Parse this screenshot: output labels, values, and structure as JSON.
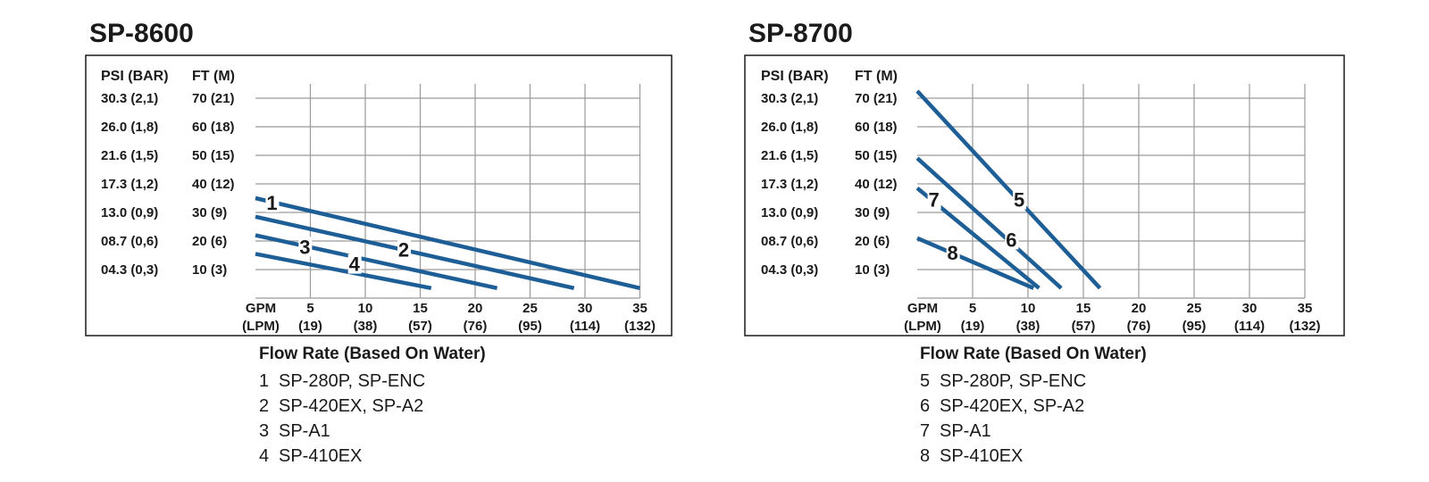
{
  "colors": {
    "series": "#1d5e96",
    "grid": "#9a9a9a",
    "frame": "#1a1a1a",
    "text": "#1a1a1a"
  },
  "chart_data": [
    {
      "type": "line",
      "title": "SP-8600",
      "caption": "Flow Rate (Based On Water)",
      "y_header_psi": "PSI (BAR)",
      "y_header_ft": "FT (M)",
      "y_ticks_psi": [
        "30.3 (2,1)",
        "26.0 (1,8)",
        "21.6 (1,5)",
        "17.3 (1,2)",
        "13.0 (0,9)",
        "08.7 (0,6)",
        "04.3 (0,3)"
      ],
      "y_ticks_ft": [
        "70 (21)",
        "60 (18)",
        "50 (15)",
        "40 (12)",
        "30 (9)",
        "20 (6)",
        "10 (3)"
      ],
      "y_tick_values": [
        70,
        60,
        50,
        40,
        30,
        20,
        10
      ],
      "x_unit_gpm": "GPM",
      "x_unit_lpm": "(LPM)",
      "x_tick_values": [
        5,
        10,
        15,
        20,
        25,
        30,
        35
      ],
      "x_ticks_gpm": [
        "5",
        "10",
        "15",
        "20",
        "25",
        "30",
        "35"
      ],
      "x_ticks_lpm": [
        "(19)",
        "(38)",
        "(57)",
        "(76)",
        "(95)",
        "(114)",
        "(132)"
      ],
      "xlim": [
        0,
        35
      ],
      "ylim": [
        0,
        75
      ],
      "grid": true,
      "series": [
        {
          "label": "1",
          "legend": "SP-280P, SP-ENC",
          "x": [
            0,
            35
          ],
          "y": [
            35,
            3.5
          ],
          "label_at": [
            1.5,
            33.5
          ]
        },
        {
          "label": "2",
          "legend": "SP-420EX, SP-A2",
          "x": [
            0,
            29
          ],
          "y": [
            28.5,
            3.5
          ],
          "label_at": [
            13.5,
            17
          ]
        },
        {
          "label": "3",
          "legend": "SP-A1",
          "x": [
            0,
            22
          ],
          "y": [
            22,
            3.5
          ],
          "label_at": [
            4.5,
            18
          ]
        },
        {
          "label": "4",
          "legend": "SP-410EX",
          "x": [
            0,
            16
          ],
          "y": [
            15.5,
            3.5
          ],
          "label_at": [
            9,
            12
          ]
        }
      ]
    },
    {
      "type": "line",
      "title": "SP-8700",
      "caption": "Flow Rate (Based On Water)",
      "y_header_psi": "PSI (BAR)",
      "y_header_ft": "FT (M)",
      "y_ticks_psi": [
        "30.3 (2,1)",
        "26.0 (1,8)",
        "21.6 (1,5)",
        "17.3 (1,2)",
        "13.0 (0,9)",
        "08.7 (0,6)",
        "04.3 (0,3)"
      ],
      "y_ticks_ft": [
        "70 (21)",
        "60 (18)",
        "50 (15)",
        "40 (12)",
        "30 (9)",
        "20 (6)",
        "10 (3)"
      ],
      "y_tick_values": [
        70,
        60,
        50,
        40,
        30,
        20,
        10
      ],
      "x_unit_gpm": "GPM",
      "x_unit_lpm": "(LPM)",
      "x_tick_values": [
        5,
        10,
        15,
        20,
        25,
        30,
        35
      ],
      "x_ticks_gpm": [
        "5",
        "10",
        "15",
        "20",
        "25",
        "30",
        "35"
      ],
      "x_ticks_lpm": [
        "(19)",
        "(38)",
        "(57)",
        "(76)",
        "(95)",
        "(114)",
        "(132)"
      ],
      "xlim": [
        0,
        35
      ],
      "ylim": [
        0,
        75
      ],
      "grid": true,
      "series": [
        {
          "label": "5",
          "legend": "SP-280P, SP-ENC",
          "x": [
            0,
            16.5
          ],
          "y": [
            72.5,
            3.5
          ],
          "label_at": [
            9.2,
            34.5
          ]
        },
        {
          "label": "6",
          "legend": "SP-420EX, SP-A2",
          "x": [
            0,
            13
          ],
          "y": [
            49,
            3.5
          ],
          "label_at": [
            8.5,
            20.5
          ]
        },
        {
          "label": "7",
          "legend": "SP-A1",
          "x": [
            0,
            11
          ],
          "y": [
            38.5,
            3.5
          ],
          "label_at": [
            1.5,
            34.5
          ]
        },
        {
          "label": "8",
          "legend": "SP-410EX",
          "x": [
            0,
            10.5
          ],
          "y": [
            21,
            3.5
          ],
          "label_at": [
            3.2,
            16
          ]
        }
      ]
    }
  ]
}
